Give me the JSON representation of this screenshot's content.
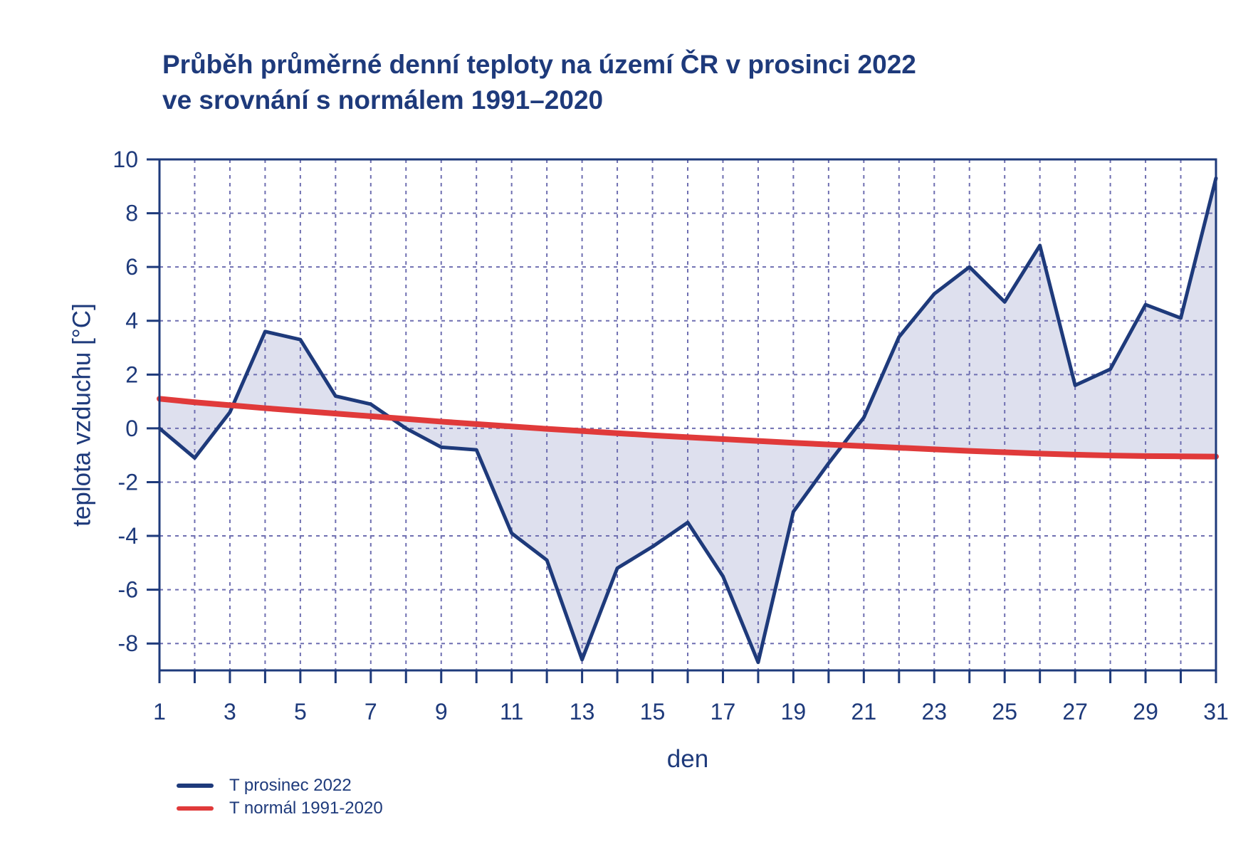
{
  "chart_data": {
    "type": "line",
    "title": [
      "Průběh průměrné denní teploty na území ČR v prosinci 2022",
      "ve srovnání s normálem 1991–2020"
    ],
    "xlabel": "den",
    "ylabel": "teplota vzduchu [°C]",
    "xlim": [
      1,
      31
    ],
    "ylim": [
      -9,
      10
    ],
    "xticks": [
      1,
      3,
      5,
      7,
      9,
      11,
      13,
      15,
      17,
      19,
      21,
      23,
      25,
      27,
      29,
      31
    ],
    "yticks": [
      -8,
      -6,
      -4,
      -2,
      0,
      2,
      4,
      6,
      8,
      10
    ],
    "grid": true,
    "legend_position": "bottom-left",
    "fill_between_series": true,
    "series": [
      {
        "name": "T prosinec 2022",
        "color": "#1e3a7b",
        "x": [
          1,
          2,
          3,
          4,
          5,
          6,
          7,
          8,
          9,
          10,
          11,
          12,
          13,
          14,
          15,
          16,
          17,
          18,
          19,
          20,
          21,
          22,
          23,
          24,
          25,
          26,
          27,
          28,
          29,
          30,
          31
        ],
        "values": [
          0.0,
          -1.1,
          0.6,
          3.6,
          3.3,
          1.2,
          0.9,
          0.0,
          -0.7,
          -0.8,
          -3.9,
          -4.9,
          -8.6,
          -5.2,
          -4.4,
          -3.5,
          -5.5,
          -8.7,
          -3.1,
          -1.3,
          0.4,
          3.4,
          5.0,
          6.0,
          4.7,
          6.8,
          1.6,
          2.2,
          4.6,
          4.1,
          9.3
        ]
      },
      {
        "name": "T normál 1991-2020",
        "color": "#e03a3a",
        "x": [
          1,
          2,
          3,
          4,
          5,
          6,
          7,
          8,
          9,
          10,
          11,
          12,
          13,
          14,
          15,
          16,
          17,
          18,
          19,
          20,
          21,
          22,
          23,
          24,
          25,
          26,
          27,
          28,
          29,
          30,
          31
        ],
        "values": [
          1.1,
          0.97,
          0.86,
          0.75,
          0.65,
          0.55,
          0.45,
          0.35,
          0.25,
          0.16,
          0.07,
          -0.02,
          -0.1,
          -0.18,
          -0.26,
          -0.33,
          -0.4,
          -0.47,
          -0.54,
          -0.6,
          -0.66,
          -0.72,
          -0.78,
          -0.84,
          -0.89,
          -0.94,
          -0.98,
          -1.01,
          -1.03,
          -1.04,
          -1.05
        ]
      }
    ],
    "fill_color": "#dee0ee",
    "grid_color": "#6f6fb1",
    "axis_color": "#1e3a7b"
  }
}
